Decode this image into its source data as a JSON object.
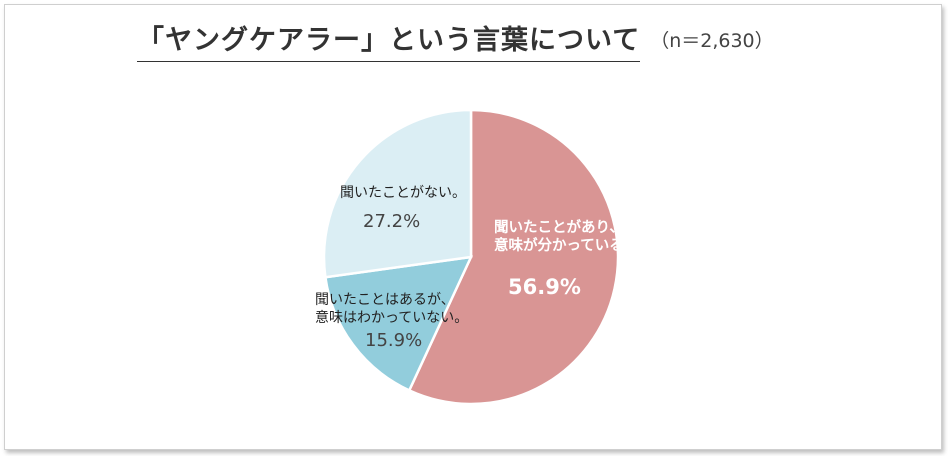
{
  "chart_data": {
    "type": "pie",
    "title": "「ヤングケアラー」という言葉について",
    "subtitle": "（n＝2,630）",
    "slices": [
      {
        "label": "聞いたことがあり、意味が分かっている。",
        "line1": "聞いたことがあり、",
        "line2": "意味が分かっている。",
        "value": 56.9,
        "value_label": "56.9%",
        "color": "#d99594"
      },
      {
        "label": "聞いたことはあるが、意味はわかっていない。",
        "line1": "聞いたことはあるが、",
        "line2": "意味はわかっていない。",
        "value": 15.9,
        "value_label": "15.9%",
        "color": "#92cddc"
      },
      {
        "label": "聞いたことがない。",
        "line1": "聞いたことがない。",
        "line2": "",
        "value": 27.2,
        "value_label": "27.2%",
        "color": "#dbeef4"
      }
    ]
  }
}
